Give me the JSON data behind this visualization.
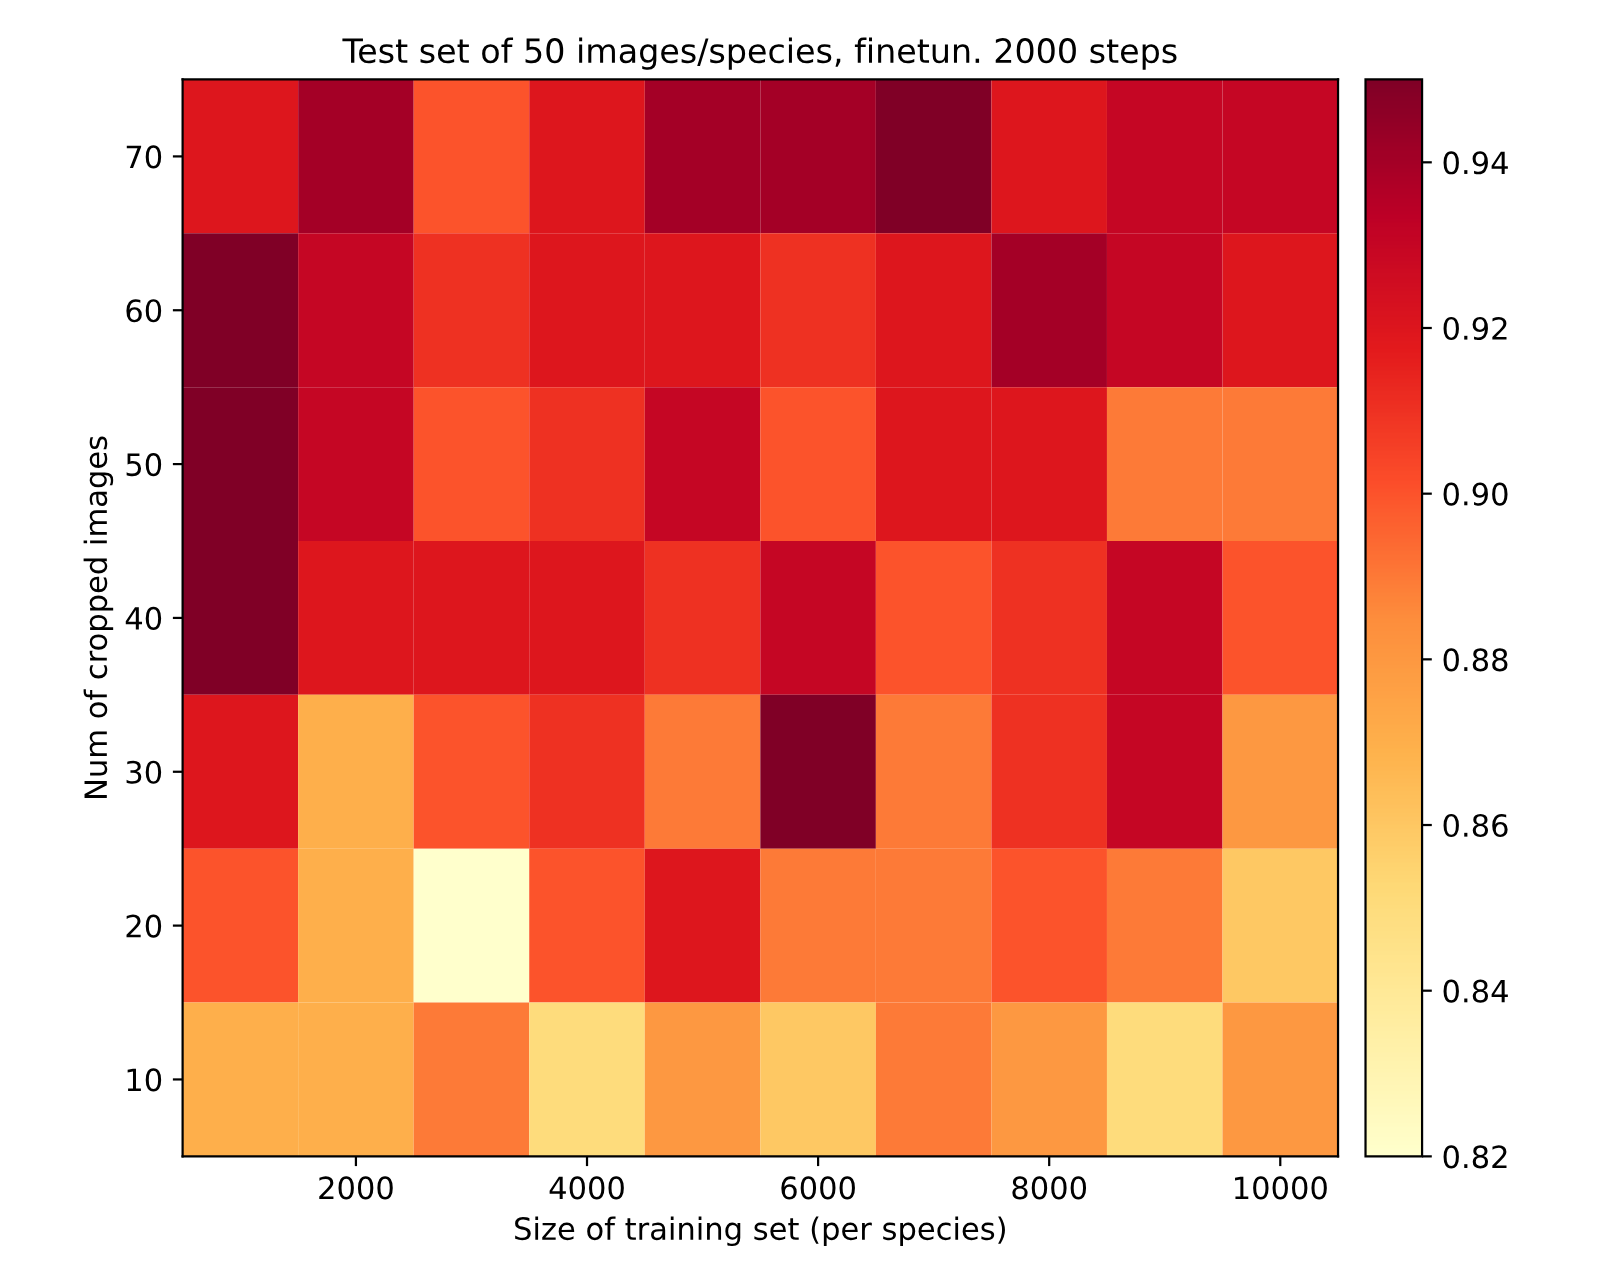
{
  "chart_data": {
    "type": "heatmap",
    "title": "Test set of 50 images/species, finetun. 2000 steps",
    "xlabel": "Size of training set (per species)",
    "ylabel": "Num of cropped images",
    "x": [
      1000,
      2000,
      3000,
      4000,
      5000,
      6000,
      7000,
      8000,
      9000,
      10000
    ],
    "y": [
      70,
      60,
      50,
      40,
      30,
      20,
      10
    ],
    "cells": [
      [
        0.92,
        0.94,
        0.9,
        0.92,
        0.94,
        0.94,
        0.95,
        0.92,
        0.93,
        0.93
      ],
      [
        0.95,
        0.93,
        0.91,
        0.92,
        0.92,
        0.91,
        0.92,
        0.94,
        0.93,
        0.92
      ],
      [
        0.95,
        0.93,
        0.9,
        0.91,
        0.93,
        0.9,
        0.92,
        0.92,
        0.89,
        0.89
      ],
      [
        0.95,
        0.92,
        0.92,
        0.92,
        0.91,
        0.93,
        0.9,
        0.91,
        0.93,
        0.9
      ],
      [
        0.92,
        0.87,
        0.9,
        0.91,
        0.89,
        0.95,
        0.89,
        0.91,
        0.93,
        0.88
      ],
      [
        0.9,
        0.87,
        0.82,
        0.9,
        0.92,
        0.89,
        0.89,
        0.9,
        0.89,
        0.86
      ],
      [
        0.87,
        0.87,
        0.89,
        0.85,
        0.88,
        0.86,
        0.89,
        0.88,
        0.85,
        0.88
      ]
    ],
    "xlim": [
      500,
      10500
    ],
    "xticks": [
      2000,
      4000,
      6000,
      8000,
      10000
    ],
    "ylim": [
      5,
      75
    ],
    "yticks": [
      10,
      20,
      30,
      40,
      50,
      60,
      70
    ],
    "clim": [
      0.82,
      0.95
    ],
    "cticks": [
      0.82,
      0.84,
      0.86,
      0.88,
      {
        "value": 0.9,
        "label": "0.90"
      },
      0.92,
      0.94
    ],
    "grid": false
  }
}
